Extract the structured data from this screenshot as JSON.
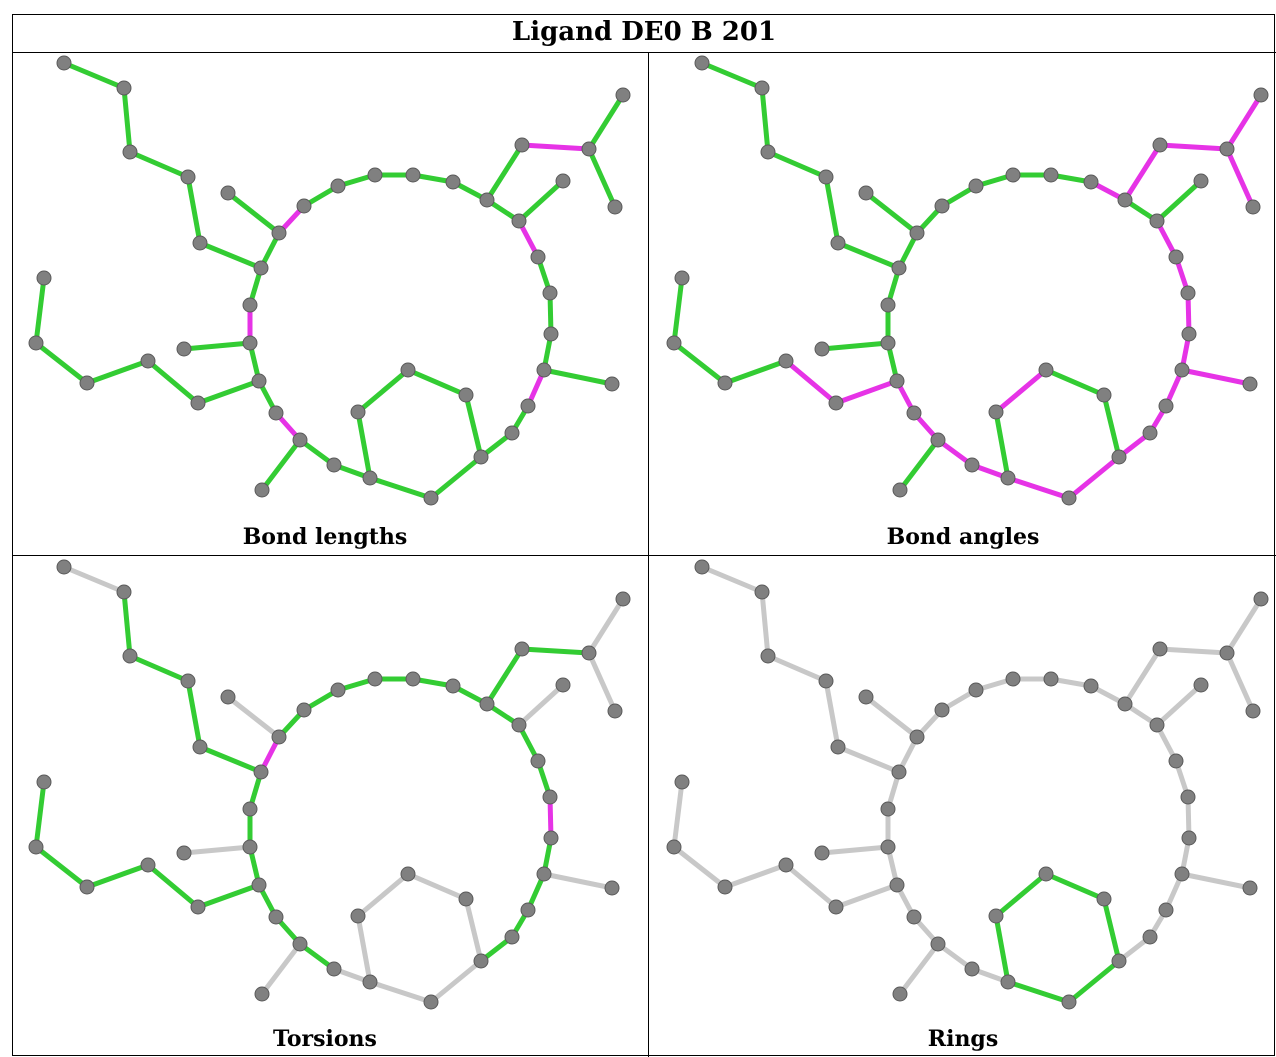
{
  "title": "Ligand DE0 B 201",
  "panels": [
    {
      "caption": "Bond lengths"
    },
    {
      "caption": "Bond angles"
    },
    {
      "caption": "Torsions"
    },
    {
      "caption": "Rings"
    }
  ]
}
